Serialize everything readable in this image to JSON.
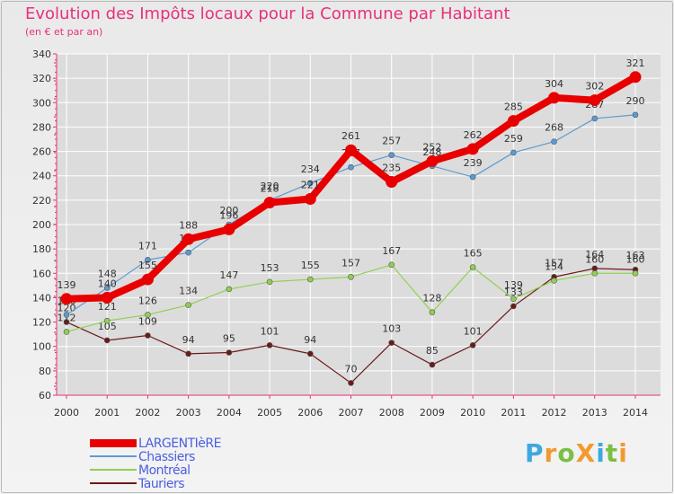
{
  "title": "Evolution des Impôts locaux pour la Commune par Habitant",
  "subtitle": "(en € et par an)",
  "logo": {
    "text": "ProXiti",
    "colors": [
      "#3da9e0",
      "#f29a2e",
      "#79c043",
      "#f29a2e",
      "#3da9e0",
      "#79c043",
      "#f29a2e"
    ]
  },
  "colors": {
    "title": "#e8307a",
    "legend_text": "#4a5fe0",
    "axis": "#e8307a",
    "grid": "#ffffff",
    "plot_bg": "#dcdcdc"
  },
  "chart_data": {
    "type": "line",
    "title": "Evolution des Impôts locaux pour la Commune par Habitant",
    "subtitle": "(en € et par an)",
    "xlabel": "",
    "ylabel": "",
    "x": [
      2000,
      2001,
      2002,
      2003,
      2004,
      2005,
      2006,
      2007,
      2008,
      2009,
      2010,
      2011,
      2012,
      2013,
      2014
    ],
    "ylim": [
      60,
      340
    ],
    "yticks": [
      60,
      80,
      100,
      120,
      140,
      160,
      180,
      200,
      220,
      240,
      260,
      280,
      300,
      320,
      340
    ],
    "grid": true,
    "legend_position": "bottom-left",
    "series": [
      {
        "name": "LARGENTIèRE",
        "color": "#e80000",
        "values": [
          139,
          140,
          155,
          188,
          196,
          218,
          221,
          261,
          235,
          252,
          262,
          285,
          304,
          302,
          321
        ]
      },
      {
        "name": "Chassiers",
        "color": "#5b9bd5",
        "values": [
          126,
          148,
          171,
          177,
          200,
          220,
          234,
          247,
          257,
          248,
          239,
          259,
          268,
          287,
          290
        ]
      },
      {
        "name": "Montréal",
        "color": "#90d050",
        "values": [
          112,
          121,
          126,
          134,
          147,
          153,
          155,
          157,
          167,
          128,
          165,
          139,
          154,
          160,
          160
        ]
      },
      {
        "name": "Tauriers",
        "color": "#6b1a1a",
        "values": [
          120,
          105,
          109,
          94,
          95,
          101,
          94,
          70,
          103,
          85,
          101,
          133,
          157,
          164,
          163
        ]
      }
    ]
  }
}
